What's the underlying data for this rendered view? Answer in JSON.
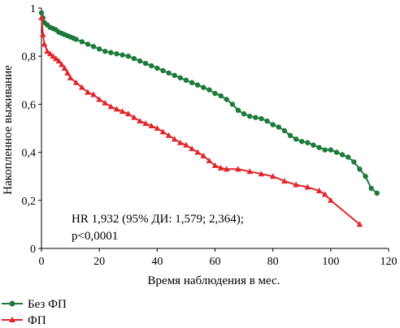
{
  "chart_data": {
    "type": "line",
    "title": "",
    "xlabel": "Время наблюдения в мес.",
    "ylabel": "Накопленное выживание",
    "xlim": [
      0,
      120
    ],
    "ylim": [
      0,
      1
    ],
    "xticks": [
      "0",
      "20",
      "40",
      "60",
      "80",
      "100",
      "120"
    ],
    "yticks": [
      "0",
      "0,2",
      "0,4",
      "0,6",
      "0,8",
      "1"
    ],
    "grid": false,
    "legend_position": "bottom-left",
    "annotation": [
      "HR 1,932 (95% ДИ: 1,579; 2,364);",
      "p<0,0001"
    ],
    "series": [
      {
        "name": "Без ФП",
        "color": "#1e7a3c",
        "marker": "circle",
        "x": [
          0,
          0.5,
          1,
          2,
          3,
          4,
          5,
          6,
          7,
          8,
          9,
          10,
          11,
          12,
          14,
          16,
          18,
          20,
          22,
          24,
          26,
          28,
          30,
          32,
          34,
          36,
          38,
          40,
          42,
          44,
          46,
          48,
          50,
          52,
          54,
          56,
          58,
          60,
          62,
          64,
          66,
          68,
          70,
          72,
          74,
          76,
          78,
          80,
          82,
          84,
          86,
          88,
          90,
          92,
          94,
          96,
          98,
          100,
          102,
          104,
          106,
          108,
          110,
          112,
          114,
          116
        ],
        "y": [
          0.98,
          0.96,
          0.94,
          0.93,
          0.92,
          0.915,
          0.91,
          0.9,
          0.895,
          0.89,
          0.885,
          0.88,
          0.875,
          0.87,
          0.86,
          0.85,
          0.84,
          0.83,
          0.82,
          0.815,
          0.81,
          0.805,
          0.8,
          0.79,
          0.78,
          0.77,
          0.76,
          0.75,
          0.74,
          0.73,
          0.72,
          0.71,
          0.7,
          0.69,
          0.68,
          0.67,
          0.66,
          0.645,
          0.635,
          0.62,
          0.6,
          0.575,
          0.56,
          0.55,
          0.545,
          0.54,
          0.53,
          0.515,
          0.505,
          0.49,
          0.47,
          0.455,
          0.445,
          0.44,
          0.43,
          0.42,
          0.41,
          0.41,
          0.4,
          0.39,
          0.38,
          0.36,
          0.33,
          0.3,
          0.25,
          0.23
        ]
      },
      {
        "name": "ФП",
        "color": "#e0262b",
        "marker": "triangle",
        "x": [
          0,
          0.5,
          1,
          2,
          3,
          4,
          5,
          6,
          7,
          8,
          9,
          10,
          12,
          14,
          16,
          18,
          20,
          22,
          24,
          26,
          28,
          30,
          32,
          34,
          36,
          38,
          40,
          42,
          44,
          46,
          48,
          50,
          52,
          54,
          56,
          58,
          60,
          62,
          64,
          68,
          72,
          76,
          80,
          84,
          88,
          92,
          96,
          98,
          100,
          110
        ],
        "y": [
          0.96,
          0.89,
          0.85,
          0.82,
          0.81,
          0.8,
          0.79,
          0.78,
          0.765,
          0.75,
          0.73,
          0.71,
          0.69,
          0.67,
          0.65,
          0.64,
          0.62,
          0.605,
          0.59,
          0.58,
          0.57,
          0.56,
          0.545,
          0.53,
          0.52,
          0.51,
          0.5,
          0.485,
          0.47,
          0.455,
          0.44,
          0.43,
          0.415,
          0.4,
          0.385,
          0.365,
          0.345,
          0.335,
          0.33,
          0.33,
          0.32,
          0.31,
          0.3,
          0.28,
          0.265,
          0.255,
          0.24,
          0.225,
          0.2,
          0.1
        ]
      }
    ]
  }
}
